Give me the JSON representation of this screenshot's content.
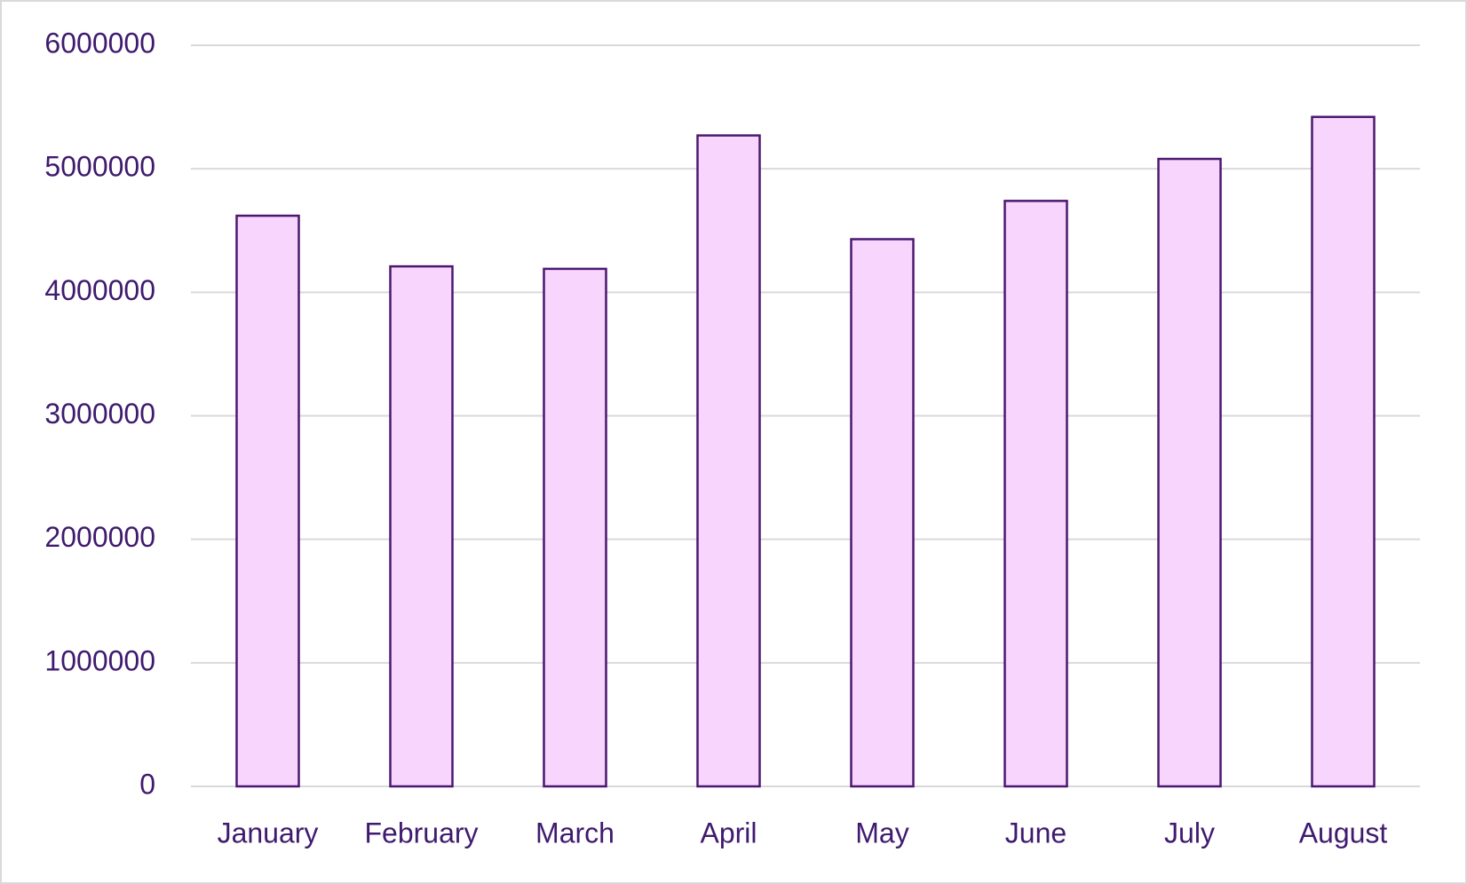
{
  "chart_data": {
    "type": "bar",
    "categories": [
      "January",
      "February",
      "March",
      "April",
      "May",
      "June",
      "July",
      "August"
    ],
    "values": [
      4620000,
      4210000,
      4190000,
      5270000,
      4430000,
      4740000,
      5080000,
      5420000
    ],
    "color": "#f8d5fc",
    "edgecolor": "#4b1870",
    "ylim": [
      0,
      6000000
    ],
    "yticks": [
      0,
      1000000,
      2000000,
      3000000,
      4000000,
      5000000,
      6000000
    ],
    "grid": true
  }
}
